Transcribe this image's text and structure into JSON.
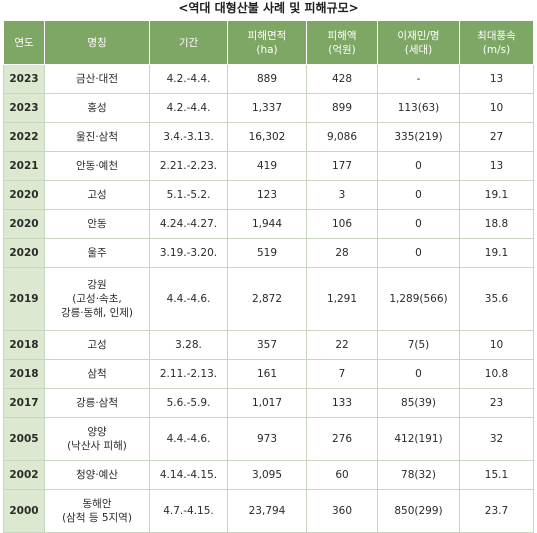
{
  "title": "<역대 대형산불 사례 및 피해규모>",
  "columns": [
    {
      "key": "year",
      "lines": [
        "연도"
      ]
    },
    {
      "key": "name",
      "lines": [
        "명칭"
      ]
    },
    {
      "key": "period",
      "lines": [
        "기간"
      ]
    },
    {
      "key": "area",
      "lines": [
        "피해면적",
        "(ha)"
      ]
    },
    {
      "key": "amount",
      "lines": [
        "피해액",
        "(억원)"
      ]
    },
    {
      "key": "displaced",
      "lines": [
        "이재민/명",
        "(세대)"
      ]
    },
    {
      "key": "wind",
      "lines": [
        "최대풍속",
        "(m/s)"
      ]
    }
  ],
  "rows": [
    {
      "year": "2023",
      "name": [
        "금산·대전"
      ],
      "period": "4.2.-4.4.",
      "area": "889",
      "amount": "428",
      "displaced": "-",
      "wind": "13"
    },
    {
      "year": "2023",
      "name": [
        "홍성"
      ],
      "period": "4.2.-4.4.",
      "area": "1,337",
      "amount": "899",
      "displaced": "113(63)",
      "wind": "10"
    },
    {
      "year": "2022",
      "name": [
        "울진·삼척"
      ],
      "period": "3.4.-3.13.",
      "area": "16,302",
      "amount": "9,086",
      "displaced": "335(219)",
      "wind": "27"
    },
    {
      "year": "2021",
      "name": [
        "안동·예천"
      ],
      "period": "2.21.-2.23.",
      "area": "419",
      "amount": "177",
      "displaced": "0",
      "wind": "13"
    },
    {
      "year": "2020",
      "name": [
        "고성"
      ],
      "period": "5.1.-5.2.",
      "area": "123",
      "amount": "3",
      "displaced": "0",
      "wind": "19.1"
    },
    {
      "year": "2020",
      "name": [
        "안동"
      ],
      "period": "4.24.-4.27.",
      "area": "1,944",
      "amount": "106",
      "displaced": "0",
      "wind": "18.8"
    },
    {
      "year": "2020",
      "name": [
        "울주"
      ],
      "period": "3.19.-3.20.",
      "area": "519",
      "amount": "28",
      "displaced": "0",
      "wind": "19.1"
    },
    {
      "year": "2019",
      "name": [
        "강원",
        "(고성·속초,",
        "강릉·동해, 인제)"
      ],
      "period": "4.4.-4.6.",
      "area": "2,872",
      "amount": "1,291",
      "displaced": "1,289(566)",
      "wind": "35.6"
    },
    {
      "year": "2018",
      "name": [
        "고성"
      ],
      "period": "3.28.",
      "area": "357",
      "amount": "22",
      "displaced": "7(5)",
      "wind": "10"
    },
    {
      "year": "2018",
      "name": [
        "삼척"
      ],
      "period": "2.11.-2.13.",
      "area": "161",
      "amount": "7",
      "displaced": "0",
      "wind": "10.8"
    },
    {
      "year": "2017",
      "name": [
        "강릉·삼척"
      ],
      "period": "5.6.-5.9.",
      "area": "1,017",
      "amount": "133",
      "displaced": "85(39)",
      "wind": "23"
    },
    {
      "year": "2005",
      "name": [
        "양양",
        "(낙산사 피해)"
      ],
      "period": "4.4.-4.6.",
      "area": "973",
      "amount": "276",
      "displaced": "412(191)",
      "wind": "32"
    },
    {
      "year": "2002",
      "name": [
        "청양·예산"
      ],
      "period": "4.14.-4.15.",
      "area": "3,095",
      "amount": "60",
      "displaced": "78(32)",
      "wind": "15.1"
    },
    {
      "year": "2000",
      "name": [
        "동해안",
        "(삼척 등 5지역)"
      ],
      "period": "4.7.-4.15.",
      "area": "23,794",
      "amount": "360",
      "displaced": "850(299)",
      "wind": "23.7"
    }
  ]
}
